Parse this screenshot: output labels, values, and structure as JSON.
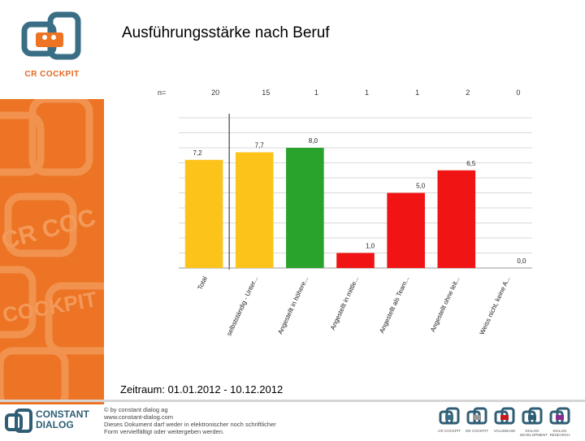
{
  "title": "Ausführungsstärke nach Beruf",
  "logo_caption": "CR COCKPIT",
  "period": "Zeitraum: 01.01.2012 - 10.12.2012",
  "footer": {
    "brand_line1": "CONSTANT",
    "brand_line2": "DIALOG",
    "copyright": [
      "© by constant dialog ag",
      "www.constant-dialog.com",
      "Dieses Dokument darf weder in elektronischer noch schriftlicher",
      "Form vervielfältigt oder weitergeben werden."
    ],
    "products": [
      {
        "label": "CR COCKPIT",
        "color": "#3a6e85"
      },
      {
        "label": "DR COCKPIT",
        "color": "#9a9a9a"
      },
      {
        "label": "VALUEBASE",
        "color": "#c8171f"
      },
      {
        "label": "DIALOG DEVELOPMENT",
        "color": "#2f5e74"
      },
      {
        "label": "DIALOG RESEARCH",
        "color": "#8b2a8f"
      }
    ]
  },
  "chart_data": {
    "type": "bar",
    "n_label": "n=",
    "categories": [
      "Total",
      "selbstständig - Unter...",
      "Angestellt in höhere...",
      "Angestellt in mittle...",
      "Angestellt als Team...",
      "Angestellt ohne leit...",
      "Weiss nicht, keine A..."
    ],
    "n": [
      "20",
      "15",
      "1",
      "1",
      "1",
      "2",
      "0"
    ],
    "values": [
      7.2,
      7.7,
      8.0,
      1.0,
      5.0,
      6.5,
      0.0
    ],
    "value_labels": [
      "7,2",
      "7,7",
      "8,0",
      "1,0",
      "5,0",
      "6,5",
      "0,0"
    ],
    "colors": [
      "#fcc41a",
      "#fcc41a",
      "#2aa32c",
      "#f01414",
      "#f01414",
      "#f01414",
      "#f01414"
    ],
    "ylim": [
      0,
      10
    ],
    "grid": true
  }
}
